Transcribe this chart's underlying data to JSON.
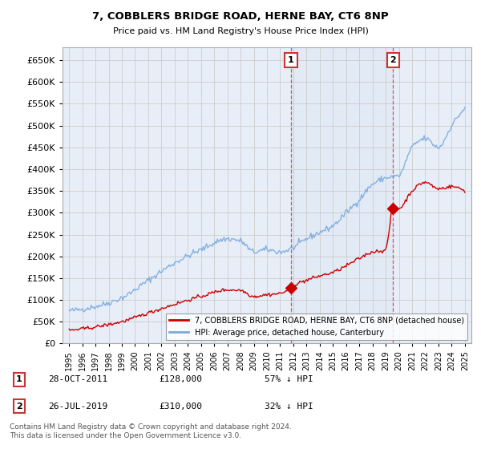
{
  "title": "7, COBBLERS BRIDGE ROAD, HERNE BAY, CT6 8NP",
  "subtitle": "Price paid vs. HM Land Registry's House Price Index (HPI)",
  "background_color": "#ffffff",
  "grid_color": "#cccccc",
  "plot_bg_color": "#e8eef8",
  "hpi_line_color": "#7aaadd",
  "price_line_color": "#cc0000",
  "sale1_date_label": "28-OCT-2011",
  "sale1_price": 128000,
  "sale1_hpi_pct": "57% ↓ HPI",
  "sale1_annotation": "1",
  "sale1_x": 2011.82,
  "sale2_date_label": "26-JUL-2019",
  "sale2_price": 310000,
  "sale2_hpi_pct": "32% ↓ HPI",
  "sale2_annotation": "2",
  "sale2_x": 2019.56,
  "legend_label_price": "7, COBBLERS BRIDGE ROAD, HERNE BAY, CT6 8NP (detached house)",
  "legend_label_hpi": "HPI: Average price, detached house, Canterbury",
  "footer": "Contains HM Land Registry data © Crown copyright and database right 2024.\nThis data is licensed under the Open Government Licence v3.0.",
  "annotation_box_color": "#cc3333",
  "ylim": [
    0,
    680000
  ],
  "xlim": [
    1994.5,
    2025.5
  ],
  "yticks": [
    0,
    50000,
    100000,
    150000,
    200000,
    250000,
    300000,
    350000,
    400000,
    450000,
    500000,
    550000,
    600000,
    650000
  ],
  "xticks": [
    1995,
    1996,
    1997,
    1998,
    1999,
    2000,
    2001,
    2002,
    2003,
    2004,
    2005,
    2006,
    2007,
    2008,
    2009,
    2010,
    2011,
    2012,
    2013,
    2014,
    2015,
    2016,
    2017,
    2018,
    2019,
    2020,
    2021,
    2022,
    2023,
    2024,
    2025
  ],
  "hpi_anchors_x": [
    1995,
    1997,
    1999,
    2001,
    2003,
    2005,
    2007,
    2008,
    2009,
    2010,
    2011,
    2012,
    2013,
    2014,
    2015,
    2016,
    2017,
    2018,
    2019,
    2020,
    2021,
    2022,
    2023,
    2024,
    2025
  ],
  "hpi_anchors_y": [
    75000,
    85000,
    105000,
    145000,
    185000,
    215000,
    240000,
    235000,
    210000,
    215000,
    210000,
    220000,
    240000,
    255000,
    270000,
    300000,
    330000,
    365000,
    380000,
    385000,
    450000,
    470000,
    450000,
    500000,
    540000
  ],
  "red_anchors_x": [
    1995,
    1997,
    1999,
    2001,
    2003,
    2005,
    2007,
    2008,
    2009,
    2010,
    2011,
    2011.82,
    2012,
    2013,
    2014,
    2015,
    2016,
    2017,
    2018,
    2019,
    2019.56,
    2020,
    2021,
    2022,
    2023,
    2024,
    2025
  ],
  "red_anchors_y": [
    30000,
    38000,
    50000,
    70000,
    90000,
    108000,
    123000,
    122000,
    108000,
    112000,
    115000,
    128000,
    133000,
    145000,
    155000,
    163000,
    178000,
    195000,
    210000,
    215000,
    310000,
    310000,
    350000,
    370000,
    355000,
    360000,
    350000
  ]
}
